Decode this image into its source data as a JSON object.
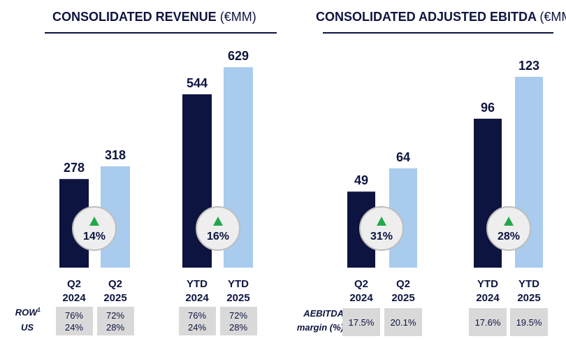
{
  "titles": {
    "revenue": "CONSOLIDATED REVENUE",
    "revenue_unit": "(€MM)",
    "ebitda": "CONSOLIDATED ADJUSTED EBITDA",
    "ebitda_unit": "(€MM)"
  },
  "colors": {
    "dark_navy": "#0d1440",
    "light_blue": "#a9cbed",
    "green_arrow": "#22a84a",
    "circle_fill": "#eeeeee",
    "circle_border": "#bdbdbd",
    "table_cell": "#d9d9d9"
  },
  "chart_data": [
    {
      "type": "bar",
      "title": "CONSOLIDATED REVENUE (€MM)",
      "categories": [
        "Q2 2024",
        "Q2 2025",
        "YTD 2024",
        "YTD 2025"
      ],
      "values": [
        278,
        318,
        544,
        629
      ],
      "bar_colors": [
        "dark_navy",
        "light_blue",
        "dark_navy",
        "light_blue"
      ],
      "growth": [
        {
          "label": "14%",
          "direction": "up",
          "between": [
            "Q2 2024",
            "Q2 2025"
          ]
        },
        {
          "label": "16%",
          "direction": "up",
          "between": [
            "YTD 2024",
            "YTD 2025"
          ]
        }
      ],
      "table": {
        "row_labels": [
          "ROW",
          "US"
        ],
        "row_label_footnote": "1",
        "cells": [
          [
            "76%",
            "24%"
          ],
          [
            "72%",
            "28%"
          ],
          [
            "76%",
            "24%"
          ],
          [
            "72%",
            "28%"
          ]
        ]
      }
    },
    {
      "type": "bar",
      "title": "CONSOLIDATED ADJUSTED EBITDA (€MM)",
      "categories": [
        "Q2 2024",
        "Q2 2025",
        "YTD 2024",
        "YTD 2025"
      ],
      "values": [
        49,
        64,
        96,
        123
      ],
      "bar_colors": [
        "dark_navy",
        "light_blue",
        "dark_navy",
        "light_blue"
      ],
      "growth": [
        {
          "label": "31%",
          "direction": "up",
          "between": [
            "Q2 2024",
            "Q2 2025"
          ]
        },
        {
          "label": "28%",
          "direction": "up",
          "between": [
            "YTD 2024",
            "YTD 2025"
          ]
        }
      ],
      "table": {
        "row_labels": [
          "AEBITDA",
          "margin (%)"
        ],
        "cells": [
          [
            "17.5%"
          ],
          [
            "20.1%"
          ],
          [
            "17.6%"
          ],
          [
            "19.5%"
          ]
        ]
      }
    }
  ]
}
